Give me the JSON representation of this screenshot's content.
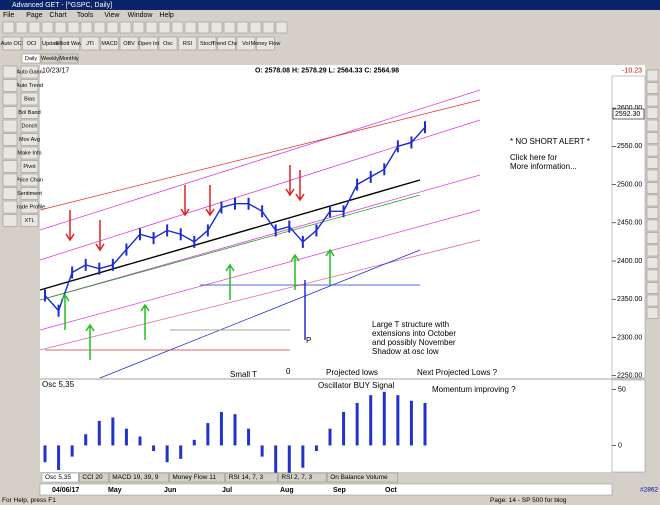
{
  "window": {
    "title": "Advanced GET - [^GSPC, Daily]",
    "menu": [
      "File",
      "Page",
      "Chart",
      "Tools",
      "View",
      "Window",
      "Help"
    ],
    "toolbar": [
      "Auto OCI",
      "OCI",
      "Update",
      "Elliott Wave",
      "JTI",
      "MACD",
      "OBV",
      "Open Int",
      "Osc",
      "RSI",
      "Stoch",
      "Trend Chan",
      "Vol",
      "Money Flow"
    ],
    "left_tools": [
      "Auto Gann",
      "Auto Trend",
      "Bias",
      "Bol Band",
      "Donch",
      "Mov Avg",
      "Make Info",
      "Pivot",
      "Price Chan",
      "Sentiment",
      "Trade Profile",
      "XTL"
    ],
    "tabs": [
      "Daily",
      "Weekly",
      "Monthly"
    ],
    "status": {
      "help": "For Help, press F1",
      "page": "Page: 14 - SP 500 for blog",
      "id": "#2862"
    }
  },
  "chart_data": {
    "type": "line",
    "date": "10/23/17",
    "ohlc": "O: 2578.08 H: 2578.29 L: 2564.33 C: 2564.98",
    "change": "-10.23",
    "last_price": "2592.30",
    "price": {
      "color": "#1a2cd0",
      "values": [
        2355,
        2335,
        2385,
        2395,
        2390,
        2395,
        2415,
        2435,
        2430,
        2440,
        2435,
        2425,
        2440,
        2470,
        2475,
        2475,
        2465,
        2440,
        2445,
        2425,
        2440,
        2465,
        2465,
        2500,
        2510,
        2520,
        2550,
        2555,
        2575
      ]
    },
    "ylim": [
      2247,
      2642
    ],
    "yticks": [
      {
        "value": 2250,
        "label": "2250.00"
      },
      {
        "value": 2300,
        "label": "2300.00"
      },
      {
        "value": 2350,
        "label": "2350.00"
      },
      {
        "value": 2400,
        "label": "2400.00"
      },
      {
        "value": 2450,
        "label": "2450.00"
      },
      {
        "value": 2500,
        "label": "2500.00"
      },
      {
        "value": 2550,
        "label": "2550.00"
      },
      {
        "value": 2600,
        "label": "2600.00"
      }
    ],
    "dates": [
      "04/06/17",
      "May",
      "Jun",
      "Jul",
      "Aug",
      "Sep",
      "Oct"
    ],
    "annotations": {
      "alert": "* NO SHORT ALERT *",
      "click": [
        "Click here for",
        "More information..."
      ],
      "large_t": [
        "Large T structure with",
        "extensions into October",
        "and possibly November",
        "Shadow at osc low"
      ],
      "p": "P",
      "projected": "Projected lows",
      "next_projected": "Next Projected Lows ?",
      "small_t": "Small T",
      "zero": "0",
      "osc_buy": "Oscillator BUY Signal",
      "momentum": "Momentum improving ?"
    },
    "oscillator": {
      "name": "Osc 5,35",
      "color": "#2233cc",
      "values": [
        -15,
        -22,
        -10,
        10,
        22,
        25,
        15,
        8,
        -5,
        -15,
        -12,
        5,
        20,
        30,
        28,
        15,
        -10,
        -25,
        -30,
        -20,
        -5,
        15,
        30,
        38,
        45,
        48,
        45,
        40,
        38
      ],
      "ylim": [
        -22,
        55
      ],
      "yticks": [
        50,
        0
      ]
    },
    "indicator_tabs": [
      "Osc 5,35",
      "CCI 20",
      "MACD 19, 39, 9",
      "Money Flow 11",
      "RSI 14, 7, 3",
      "RSI 2, 7, 3",
      "On Balance Volume"
    ]
  }
}
